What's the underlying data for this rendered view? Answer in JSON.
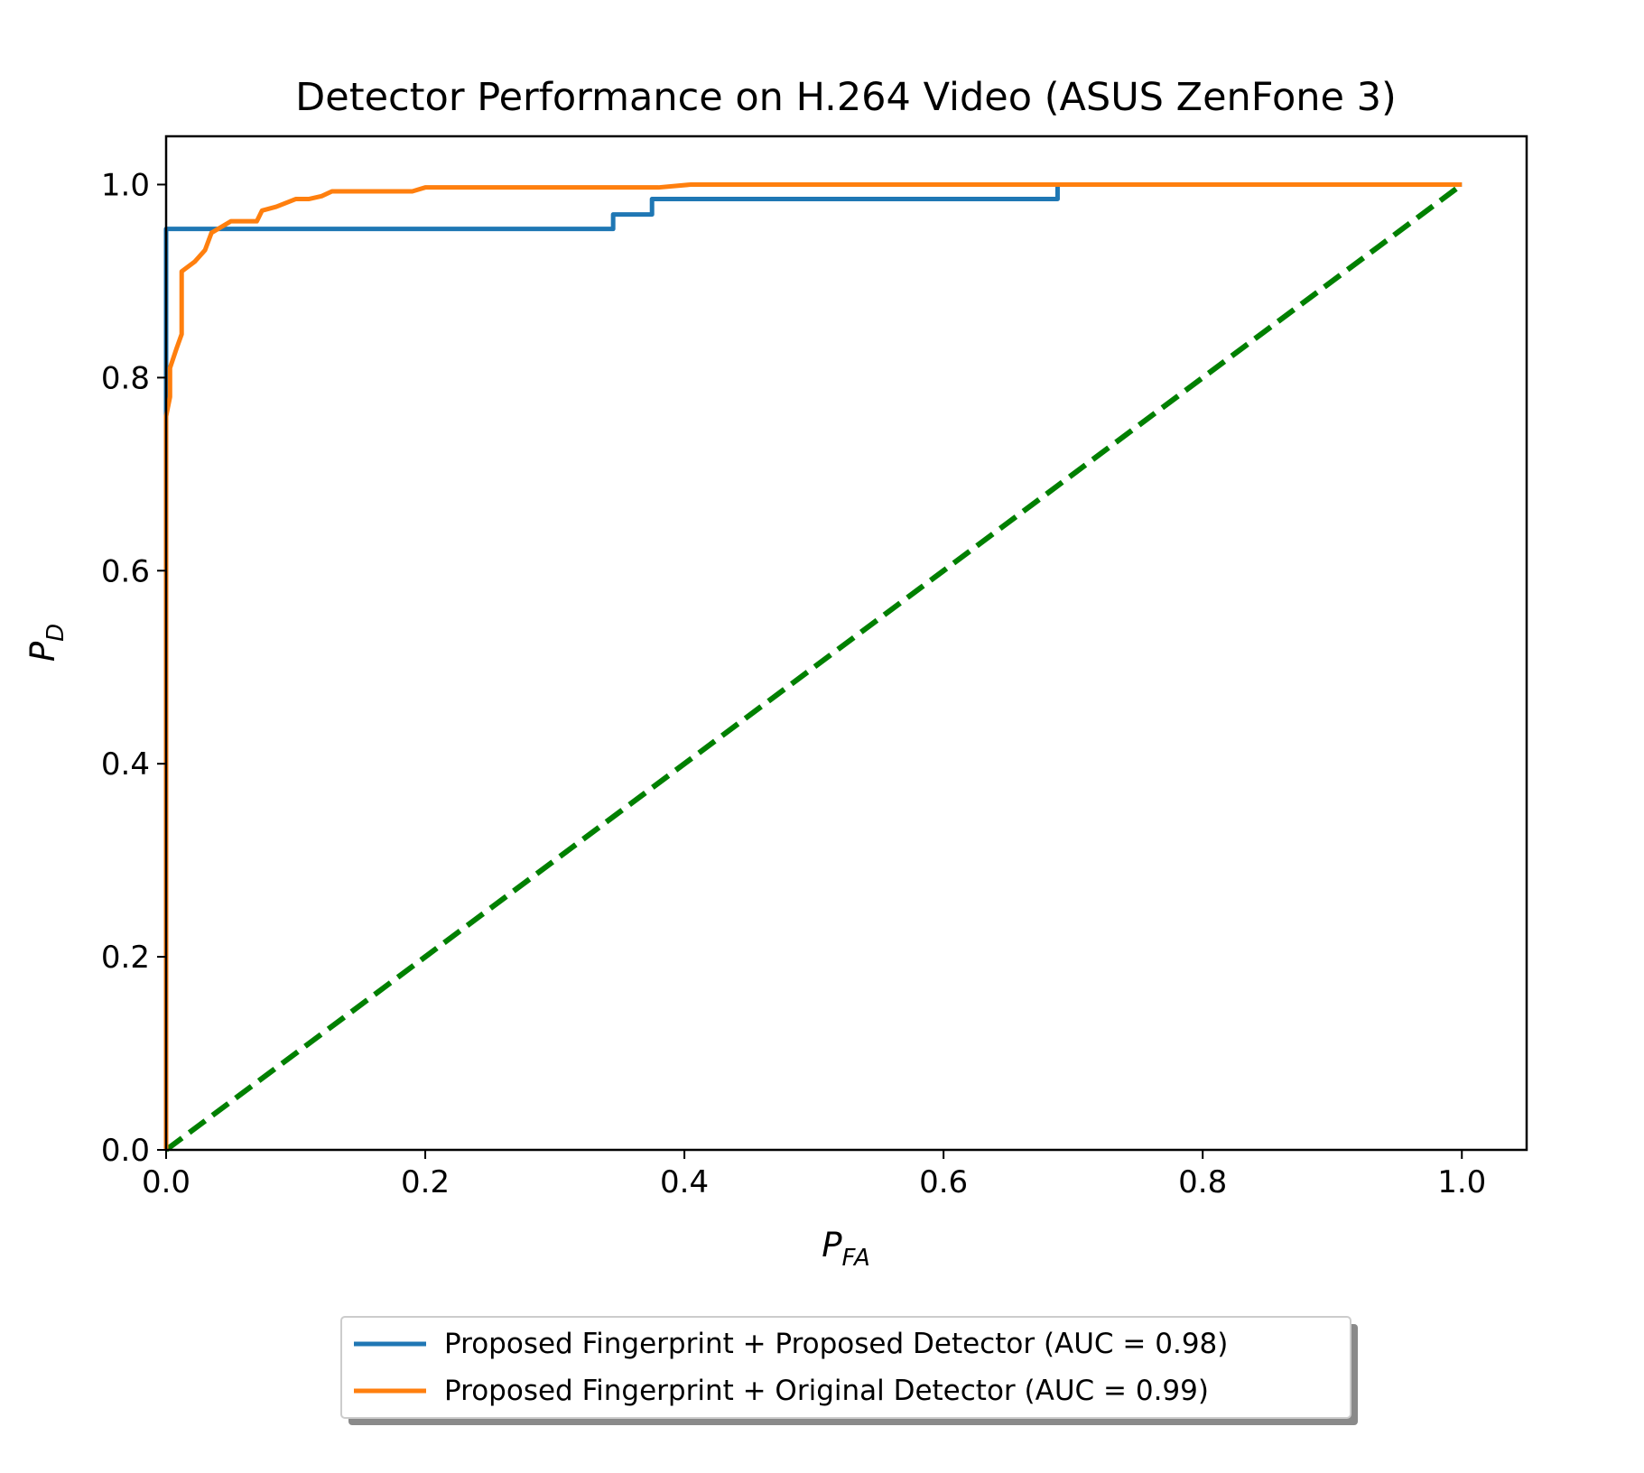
{
  "chart_data": {
    "type": "line",
    "title": "Detector Performance on H.264 Video (ASUS ZenFone 3)",
    "xlabel": {
      "base": "P",
      "sub": "FA"
    },
    "ylabel": {
      "base": "P",
      "sub": "D"
    },
    "xlim": [
      0,
      1.05
    ],
    "ylim": [
      0,
      1.05
    ],
    "xticks": [
      0.0,
      0.2,
      0.4,
      0.6,
      0.8,
      1.0
    ],
    "yticks": [
      0.0,
      0.2,
      0.4,
      0.6,
      0.8,
      1.0
    ],
    "xtick_labels": [
      "0.0",
      "0.2",
      "0.4",
      "0.6",
      "0.8",
      "1.0"
    ],
    "ytick_labels": [
      "0.0",
      "0.2",
      "0.4",
      "0.6",
      "0.8",
      "1.0"
    ],
    "grid": false,
    "legend_position": "below-center",
    "series": [
      {
        "name": "Proposed Fingerprint + Proposed Detector (AUC = 0.98)",
        "color": "#1f77b4",
        "style": "solid",
        "x": [
          0,
          0,
          0.345,
          0.345,
          0.375,
          0.375,
          0.688,
          0.688,
          1.0
        ],
        "y": [
          0,
          0.954,
          0.954,
          0.969,
          0.969,
          0.985,
          0.985,
          1.0,
          1.0
        ]
      },
      {
        "name": "Proposed Fingerprint + Original Detector (AUC = 0.99)",
        "color": "#ff7f0e",
        "style": "solid",
        "x": [
          0,
          0,
          0.003,
          0.003,
          0.008,
          0.012,
          0.012,
          0.022,
          0.03,
          0.035,
          0.05,
          0.07,
          0.074,
          0.085,
          0.1,
          0.11,
          0.12,
          0.128,
          0.19,
          0.2,
          0.38,
          0.405,
          1.0
        ],
        "y": [
          0,
          0.76,
          0.78,
          0.81,
          0.83,
          0.845,
          0.91,
          0.92,
          0.932,
          0.95,
          0.962,
          0.962,
          0.973,
          0.977,
          0.985,
          0.985,
          0.988,
          0.993,
          0.993,
          0.997,
          0.997,
          1.0,
          1.0
        ]
      },
      {
        "name": "",
        "color": "#008000",
        "style": "dashed",
        "x": [
          0,
          1
        ],
        "y": [
          0,
          1
        ]
      }
    ]
  }
}
